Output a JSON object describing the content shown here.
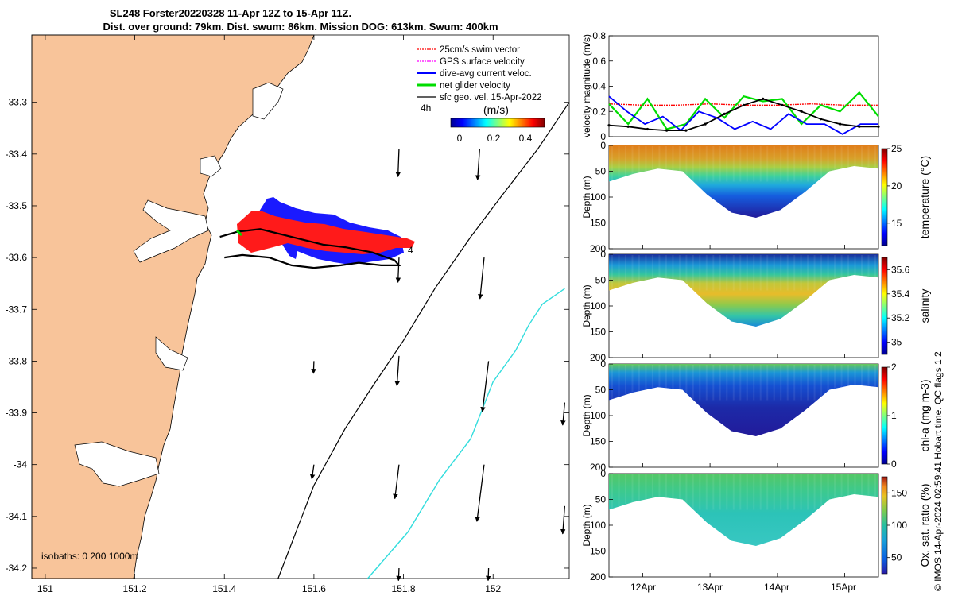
{
  "title": {
    "line1": "SL248 Forster20220328 11-Apr 12Z to 15-Apr 11Z.",
    "line2": "Dist. over ground: 79km. Dist. swum: 86km. Mission DOG: 613km. Swum: 400km"
  },
  "colors": {
    "land": "#f8c49a",
    "swim_vector": "#ff0000",
    "gps_velocity": "#ff00ff",
    "dive_current": "#0000ff",
    "net_velocity": "#00dd00",
    "geo_velocity": "#000000",
    "isobath_200": "#000000",
    "isobath_1000": "#33dddd"
  },
  "chart_data": [
    {
      "type": "map",
      "xlim": [
        150.97,
        152.17
      ],
      "ylim": [
        -34.22,
        -33.17
      ],
      "x_ticks": [
        "151",
        "151.2",
        "151.4",
        "151.6",
        "151.8",
        "152"
      ],
      "y_ticks": [
        "-33.3",
        "-33.4",
        "-33.5",
        "-33.6",
        "-33.7",
        "-33.8",
        "-33.9",
        "-34",
        "-34.1",
        "-34.2"
      ],
      "legend": [
        {
          "label": "25cm/s swim vector",
          "color": "#ff0000"
        },
        {
          "label": "GPS surface velocity",
          "color": "#ff00ff"
        },
        {
          "label": "dive-avg current veloc.",
          "color": "#0000ff"
        },
        {
          "label": "net glider velocity",
          "color": "#00dd00"
        },
        {
          "label": "sfc geo. vel. 15-Apr-2022",
          "color": "#000000"
        }
      ],
      "colorbar": {
        "title": "(m/s)",
        "ticks": [
          "0",
          "0.2",
          "0.4"
        ],
        "range": [
          0,
          0.5
        ]
      },
      "annotations": {
        "time_step": "4h",
        "track_label": "4",
        "isobaths": "isobaths: 0   200  1000m"
      },
      "track": [
        [
          151.39,
          -33.56
        ],
        [
          151.43,
          -33.55
        ],
        [
          151.48,
          -33.545
        ],
        [
          151.55,
          -33.56
        ],
        [
          151.62,
          -33.575
        ],
        [
          151.67,
          -33.58
        ],
        [
          151.73,
          -33.59
        ],
        [
          151.78,
          -33.605
        ],
        [
          151.79,
          -33.615
        ],
        [
          151.75,
          -33.615
        ],
        [
          151.7,
          -33.61
        ],
        [
          151.66,
          -33.615
        ],
        [
          151.6,
          -33.62
        ],
        [
          151.55,
          -33.615
        ],
        [
          151.5,
          -33.6
        ],
        [
          151.44,
          -33.595
        ],
        [
          151.4,
          -33.6
        ]
      ],
      "isobath_200": [
        [
          151.52,
          -34.22
        ],
        [
          151.6,
          -34.04
        ],
        [
          151.67,
          -33.93
        ],
        [
          151.73,
          -33.85
        ],
        [
          151.8,
          -33.76
        ],
        [
          151.87,
          -33.66
        ],
        [
          151.95,
          -33.56
        ],
        [
          152.02,
          -33.48
        ],
        [
          152.1,
          -33.39
        ],
        [
          152.17,
          -33.3
        ]
      ],
      "isobath_1000": [
        [
          151.72,
          -34.22
        ],
        [
          151.81,
          -34.13
        ],
        [
          151.88,
          -34.03
        ],
        [
          151.95,
          -33.95
        ],
        [
          152,
          -33.84
        ],
        [
          152.05,
          -33.78
        ],
        [
          152.08,
          -33.73
        ],
        [
          152.11,
          -33.69
        ],
        [
          152.16,
          -33.66
        ]
      ],
      "geo_vectors": [
        {
          "lon": 151.79,
          "lat": -33.39,
          "u": -0.01,
          "v": -0.27
        },
        {
          "lon": 151.97,
          "lat": -33.39,
          "u": -0.02,
          "v": -0.3
        },
        {
          "lon": 151.79,
          "lat": -33.6,
          "u": -0.01,
          "v": -0.24
        },
        {
          "lon": 151.98,
          "lat": -33.6,
          "u": -0.04,
          "v": -0.4
        },
        {
          "lon": 151.6,
          "lat": -33.8,
          "u": -0.005,
          "v": -0.12
        },
        {
          "lon": 151.79,
          "lat": -33.79,
          "u": -0.02,
          "v": -0.29
        },
        {
          "lon": 151.99,
          "lat": -33.8,
          "u": -0.06,
          "v": -0.49
        },
        {
          "lon": 152.16,
          "lat": -33.88,
          "u": -0.02,
          "v": -0.22
        },
        {
          "lon": 151.6,
          "lat": -34.0,
          "u": -0.02,
          "v": -0.14
        },
        {
          "lon": 151.79,
          "lat": -34.0,
          "u": -0.04,
          "v": -0.33
        },
        {
          "lon": 151.98,
          "lat": -34.0,
          "u": -0.07,
          "v": -0.55
        },
        {
          "lon": 152.16,
          "lat": -34.08,
          "u": -0.02,
          "v": -0.27
        },
        {
          "lon": 151.79,
          "lat": -34.2,
          "u": -0.005,
          "v": -0.12
        },
        {
          "lon": 151.99,
          "lat": -34.2,
          "u": -0.005,
          "v": -0.12
        }
      ]
    },
    {
      "type": "line",
      "ylabel": "velocity magnitude (m/s)",
      "ylim": [
        0,
        0.8
      ],
      "y_ticks": [
        "0",
        "0.2",
        "0.4",
        "0.6",
        "0.8"
      ],
      "x_range_days": [
        11.5,
        15.5
      ],
      "series": [
        {
          "color": "#ff0000",
          "values": [
            0.26,
            0.25,
            0.25,
            0.26,
            0.25,
            0.25,
            0.26,
            0.25,
            0.25
          ]
        },
        {
          "color": "#00dd00",
          "values": [
            0.26,
            0.1,
            0.3,
            0.06,
            0.1,
            0.3,
            0.15,
            0.32,
            0.28,
            0.3,
            0.1,
            0.25,
            0.2,
            0.35,
            0.16
          ]
        },
        {
          "color": "#0000ff",
          "values": [
            0.32,
            0.2,
            0.1,
            0.16,
            0.05,
            0.2,
            0.15,
            0.06,
            0.12,
            0.06,
            0.18,
            0.1,
            0.1,
            0.02,
            0.1,
            0.1
          ]
        },
        {
          "color": "#000000",
          "values": [
            0.09,
            0.08,
            0.06,
            0.05,
            0.05,
            0.1,
            0.18,
            0.25,
            0.3,
            0.25,
            0.2,
            0.14,
            0.1,
            0.08,
            0.08
          ]
        }
      ]
    },
    {
      "type": "heatmap",
      "variable": "temperature",
      "colorbar_label": "temperature (°C)",
      "colorbar_ticks": [
        "25",
        "20",
        "15"
      ],
      "clim": [
        12,
        25
      ],
      "ylabel": "Depth (m)",
      "ylim": [
        0,
        200
      ],
      "y_ticks": [
        "0",
        "50",
        "100",
        "150",
        "200"
      ],
      "profile_bottom_m": [
        70,
        55,
        45,
        50,
        95,
        130,
        140,
        125,
        90,
        50,
        40,
        45
      ],
      "surface_value": 23,
      "bottom_value": 13
    },
    {
      "type": "heatmap",
      "variable": "salinity",
      "colorbar_label": "salinity",
      "colorbar_ticks": [
        "35.6",
        "35.4",
        "35.2",
        "35"
      ],
      "clim": [
        34.9,
        35.7
      ],
      "ylabel": "Depth (m)",
      "ylim": [
        0,
        200
      ],
      "y_ticks": [
        "0",
        "50",
        "100",
        "150",
        "200"
      ],
      "profile_bottom_m": [
        70,
        55,
        45,
        50,
        95,
        130,
        140,
        125,
        90,
        50,
        40,
        45
      ],
      "surface_value": 35.0,
      "bottom_value": 35.35
    },
    {
      "type": "heatmap",
      "variable": "chl-a",
      "colorbar_label": "chl-a (mg m-3)",
      "colorbar_ticks": [
        "2",
        "1",
        "0"
      ],
      "clim": [
        0,
        2
      ],
      "ylabel": "Depth (m)",
      "ylim": [
        0,
        200
      ],
      "y_ticks": [
        "0",
        "50",
        "100",
        "150",
        "200"
      ],
      "profile_bottom_m": [
        70,
        55,
        45,
        50,
        95,
        130,
        140,
        125,
        90,
        50,
        40,
        45
      ],
      "surface_value": 0.8,
      "bottom_value": 0.05
    },
    {
      "type": "heatmap",
      "variable": "oxygen saturation",
      "colorbar_label": "Ox. sat. ratio (%)",
      "colorbar_ticks": [
        "150",
        "100",
        "50"
      ],
      "clim": [
        25,
        175
      ],
      "ylabel": "Depth (m)",
      "ylim": [
        0,
        200
      ],
      "y_ticks": [
        "0",
        "50",
        "100",
        "150",
        "200"
      ],
      "x_ticks": [
        "12Apr",
        "13Apr",
        "14Apr",
        "15Apr"
      ],
      "profile_bottom_m": [
        70,
        55,
        45,
        50,
        95,
        130,
        140,
        125,
        90,
        50,
        40,
        45
      ],
      "surface_value": 125,
      "bottom_value": 95
    }
  ],
  "credit": "© IMOS 14-Apr-2024 02:59:41 Hobart time. QC flags 1  2"
}
